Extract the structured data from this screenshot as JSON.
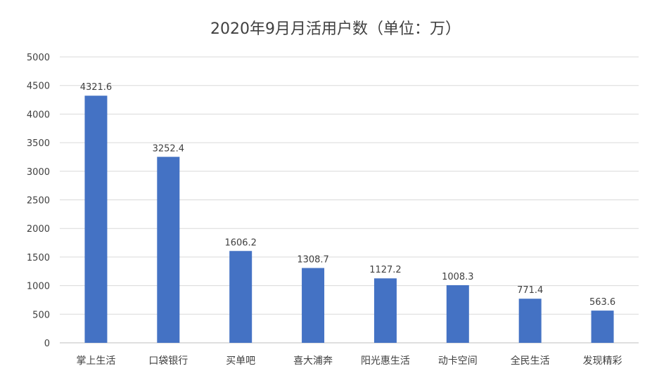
{
  "chart_data": {
    "type": "bar",
    "title": "2020年9月月活用户数（单位：万）",
    "categories": [
      "掌上生活",
      "口袋银行",
      "买单吧",
      "喜大浦奔",
      "阳光惠生活",
      "动卡空间",
      "全民生活",
      "发现精彩"
    ],
    "values": [
      4321.6,
      3252.4,
      1606.2,
      1308.7,
      1127.2,
      1008.3,
      771.4,
      563.6
    ],
    "data_labels": [
      "4321.6",
      "3252.4",
      "1606.2",
      "1308.7",
      "1127.2",
      "1008.3",
      "771.4",
      "563.6"
    ],
    "ylim": [
      0,
      5000
    ],
    "yticks": [
      0,
      500,
      1000,
      1500,
      2000,
      2500,
      3000,
      3500,
      4000,
      4500,
      5000
    ],
    "xlabel": "",
    "ylabel": "",
    "grid": true,
    "bar_color": "#4472c4"
  }
}
